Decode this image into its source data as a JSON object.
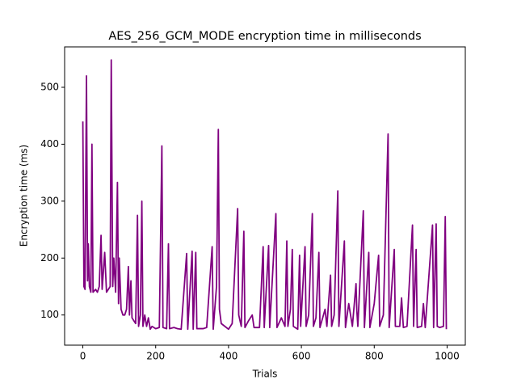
{
  "chart_data": {
    "type": "line",
    "title": "AES_256_GCM_MODE encryption time in milliseconds",
    "x_label": "Trials",
    "y_label": "Encryption time (ms)",
    "xlim": [
      -50,
      1050
    ],
    "ylim": [
      47,
      571
    ],
    "xticks": [
      0,
      200,
      400,
      600,
      800,
      1000
    ],
    "yticks": [
      100,
      200,
      300,
      400,
      500
    ],
    "grid": false,
    "series": [
      {
        "color": "#800080",
        "x": [
          0,
          3,
          6,
          10,
          13,
          15,
          18,
          22,
          25,
          28,
          35,
          40,
          45,
          50,
          53,
          60,
          65,
          70,
          75,
          78,
          82,
          85,
          90,
          95,
          98,
          100,
          105,
          110,
          115,
          120,
          125,
          128,
          132,
          135,
          140,
          145,
          150,
          153,
          158,
          162,
          165,
          170,
          175,
          180,
          185,
          190,
          200,
          210,
          217,
          220,
          230,
          235,
          238,
          250,
          260,
          270,
          285,
          288,
          300,
          303,
          310,
          313,
          330,
          340,
          355,
          358,
          367,
          372,
          375,
          380,
          390,
          400,
          410,
          425,
          428,
          435,
          442,
          445,
          455,
          465,
          470,
          485,
          495,
          498,
          510,
          513,
          530,
          533,
          545,
          555,
          560,
          563,
          570,
          575,
          578,
          590,
          595,
          598,
          610,
          613,
          620,
          630,
          633,
          640,
          648,
          651,
          665,
          670,
          680,
          683,
          690,
          700,
          703,
          718,
          721,
          730,
          740,
          750,
          752,
          755,
          770,
          773,
          785,
          788,
          800,
          812,
          815,
          825,
          838,
          841,
          855,
          858,
          870,
          875,
          880,
          890,
          905,
          908,
          915,
          918,
          930,
          935,
          940,
          960,
          963,
          970,
          973,
          980,
          990,
          995,
          998
        ],
        "values": [
          440,
          150,
          145,
          520,
          160,
          225,
          150,
          140,
          400,
          140,
          145,
          140,
          150,
          240,
          145,
          210,
          140,
          145,
          150,
          548,
          150,
          200,
          140,
          333,
          120,
          200,
          110,
          100,
          100,
          110,
          185,
          100,
          160,
          95,
          90,
          85,
          275,
          80,
          100,
          300,
          80,
          100,
          80,
          95,
          75,
          80,
          76,
          78,
          397,
          78,
          76,
          225,
          76,
          78,
          76,
          75,
          208,
          75,
          212,
          75,
          210,
          76,
          76,
          78,
          220,
          75,
          150,
          426,
          110,
          85,
          80,
          75,
          85,
          287,
          100,
          80,
          247,
          78,
          90,
          100,
          78,
          78,
          220,
          78,
          222,
          78,
          278,
          78,
          95,
          80,
          230,
          80,
          110,
          215,
          80,
          75,
          205,
          80,
          220,
          80,
          100,
          278,
          80,
          95,
          210,
          78,
          110,
          80,
          170,
          80,
          100,
          318,
          80,
          230,
          78,
          120,
          80,
          155,
          110,
          80,
          283,
          78,
          210,
          78,
          120,
          205,
          80,
          100,
          418,
          78,
          215,
          80,
          80,
          130,
          78,
          80,
          258,
          80,
          215,
          78,
          80,
          120,
          78,
          258,
          78,
          260,
          80,
          78,
          80,
          273,
          75
        ]
      }
    ]
  }
}
